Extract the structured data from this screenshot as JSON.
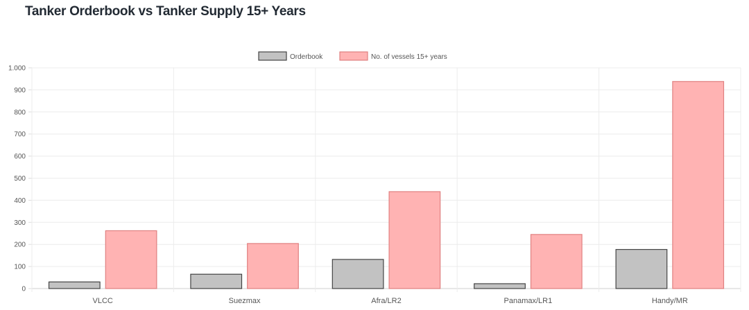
{
  "chart_data": {
    "type": "bar",
    "title": "Tanker Orderbook vs Tanker Supply 15+ Years",
    "categories": [
      "VLCC",
      "Suezmax",
      "Afra/LR2",
      "Panamax/LR1",
      "Handy/MR"
    ],
    "series": [
      {
        "name": "Orderbook",
        "values": [
          30,
          65,
          132,
          22,
          177
        ],
        "color": "#c2c2c2",
        "border": "#444444"
      },
      {
        "name": "No. of vessels 15+ years",
        "values": [
          262,
          204,
          439,
          245,
          938
        ],
        "color": "#ffb3b3",
        "border": "#e08080"
      }
    ],
    "xlabel": "",
    "ylabel": "",
    "ylim": [
      0,
      1000
    ],
    "yticks": [
      0,
      100,
      200,
      300,
      400,
      500,
      600,
      700,
      800,
      900,
      1000
    ],
    "ytick_labels": [
      "0",
      "100",
      "200",
      "300",
      "400",
      "500",
      "600",
      "700",
      "800",
      "900",
      "1.000"
    ],
    "grid": true,
    "legend_position": "top-center"
  }
}
